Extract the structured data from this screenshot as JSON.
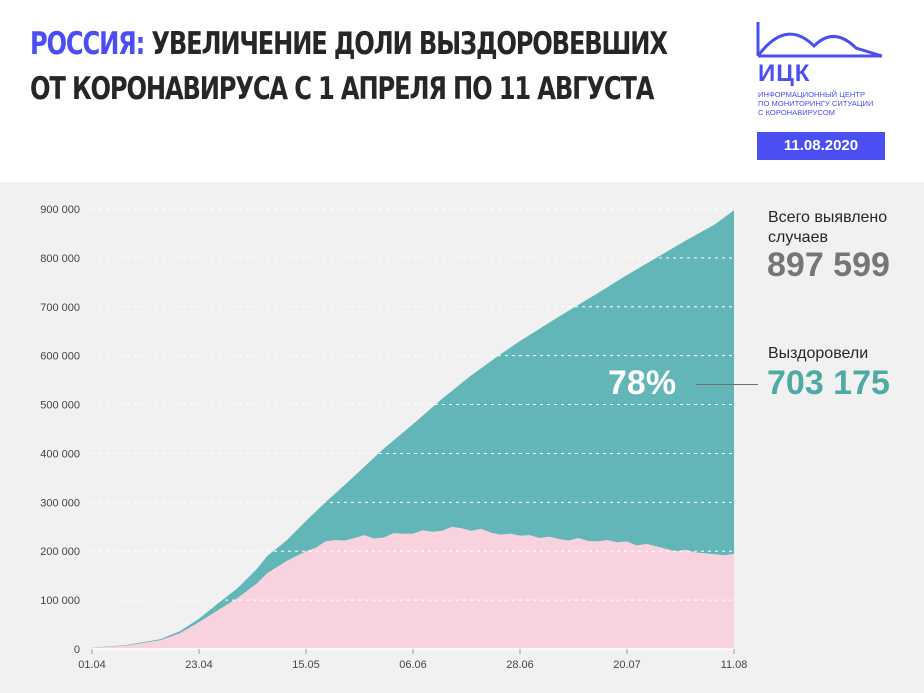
{
  "header": {
    "title_accent": "РОССИЯ:",
    "title_rest": " УВЕЛИЧЕНИЕ ДОЛИ ВЫЗДОРОВЕВШИХ",
    "title_line2": "ОТ КОРОНАВИРУСА С 1 АПРЕЛЯ ПО 11 АВГУСТА"
  },
  "logo": {
    "name": "ИЦК",
    "subtitle_lines": [
      "ИНФОРМАЦИОННЫЙ ЦЕНТР",
      "ПО МОНИТОРИНГУ СИТУАЦИИ",
      "С КОРОНАВИРУСОМ"
    ],
    "date": "11.08.2020",
    "color": "#4b4ef1"
  },
  "stats": {
    "total_label": "Всего выявлено случаев",
    "total_value": "897 599",
    "recovered_label": "Выздоровели",
    "recovered_value": "703 175",
    "recovered_pct": "78%"
  },
  "chart_data": {
    "type": "area",
    "title": "",
    "xlabel": "",
    "ylabel": "",
    "ylim": [
      0,
      900000
    ],
    "y_ticks": [
      0,
      100000,
      200000,
      300000,
      400000,
      500000,
      600000,
      700000,
      800000,
      900000
    ],
    "y_tick_labels": [
      "0",
      "100 000",
      "200 000",
      "300 000",
      "400 000",
      "500 000",
      "600 000",
      "700 000",
      "800 000",
      "900 000"
    ],
    "x_tick_labels": [
      "01.04",
      "23.04",
      "15.05",
      "06.06",
      "28.06",
      "20.07",
      "11.08"
    ],
    "x_tick_day_index": [
      0,
      22,
      44,
      66,
      88,
      110,
      132
    ],
    "grid": true,
    "colors": {
      "recovered": "#62b6b7",
      "active": "#f9d2df",
      "background": "#f1f1f1"
    },
    "series": [
      {
        "role": "total_cases",
        "day_index": [
          0,
          7,
          14,
          18,
          22,
          26,
          30,
          34,
          36,
          40,
          44,
          48,
          52,
          56,
          60,
          66,
          72,
          78,
          84,
          88,
          96,
          104,
          110,
          116,
          122,
          128,
          132
        ],
        "values": [
          2800,
          8000,
          20000,
          36000,
          62000,
          94000,
          125000,
          165000,
          190000,
          222000,
          262000,
          300000,
          336000,
          373000,
          410000,
          460000,
          512000,
          560000,
          603000,
          630000,
          680000,
          728000,
          765000,
          800000,
          835000,
          868000,
          897599
        ]
      },
      {
        "role": "active_cases",
        "day_index": [
          0,
          7,
          14,
          18,
          22,
          26,
          30,
          34,
          36,
          40,
          44,
          46,
          48,
          50,
          52,
          54,
          56,
          58,
          60,
          62,
          64,
          66,
          68,
          70,
          72,
          74,
          76,
          78,
          80,
          82,
          84,
          86,
          88,
          90,
          92,
          94,
          96,
          98,
          100,
          102,
          104,
          106,
          108,
          110,
          112,
          114,
          116,
          118,
          120,
          122,
          124,
          126,
          128,
          130,
          132
        ],
        "values": [
          2600,
          7000,
          18000,
          32000,
          55000,
          80000,
          105000,
          135000,
          155000,
          180000,
          200000,
          207000,
          220000,
          223000,
          222000,
          227000,
          233000,
          226000,
          228000,
          237000,
          236000,
          236000,
          243000,
          240000,
          242000,
          250000,
          247000,
          242000,
          246000,
          238000,
          234000,
          236000,
          232000,
          233000,
          227000,
          230000,
          225000,
          222000,
          227000,
          221000,
          220000,
          223000,
          218000,
          220000,
          212000,
          215000,
          210000,
          205000,
          200000,
          203000,
          198000,
          196000,
          194000,
          192000,
          194424
        ]
      }
    ]
  }
}
